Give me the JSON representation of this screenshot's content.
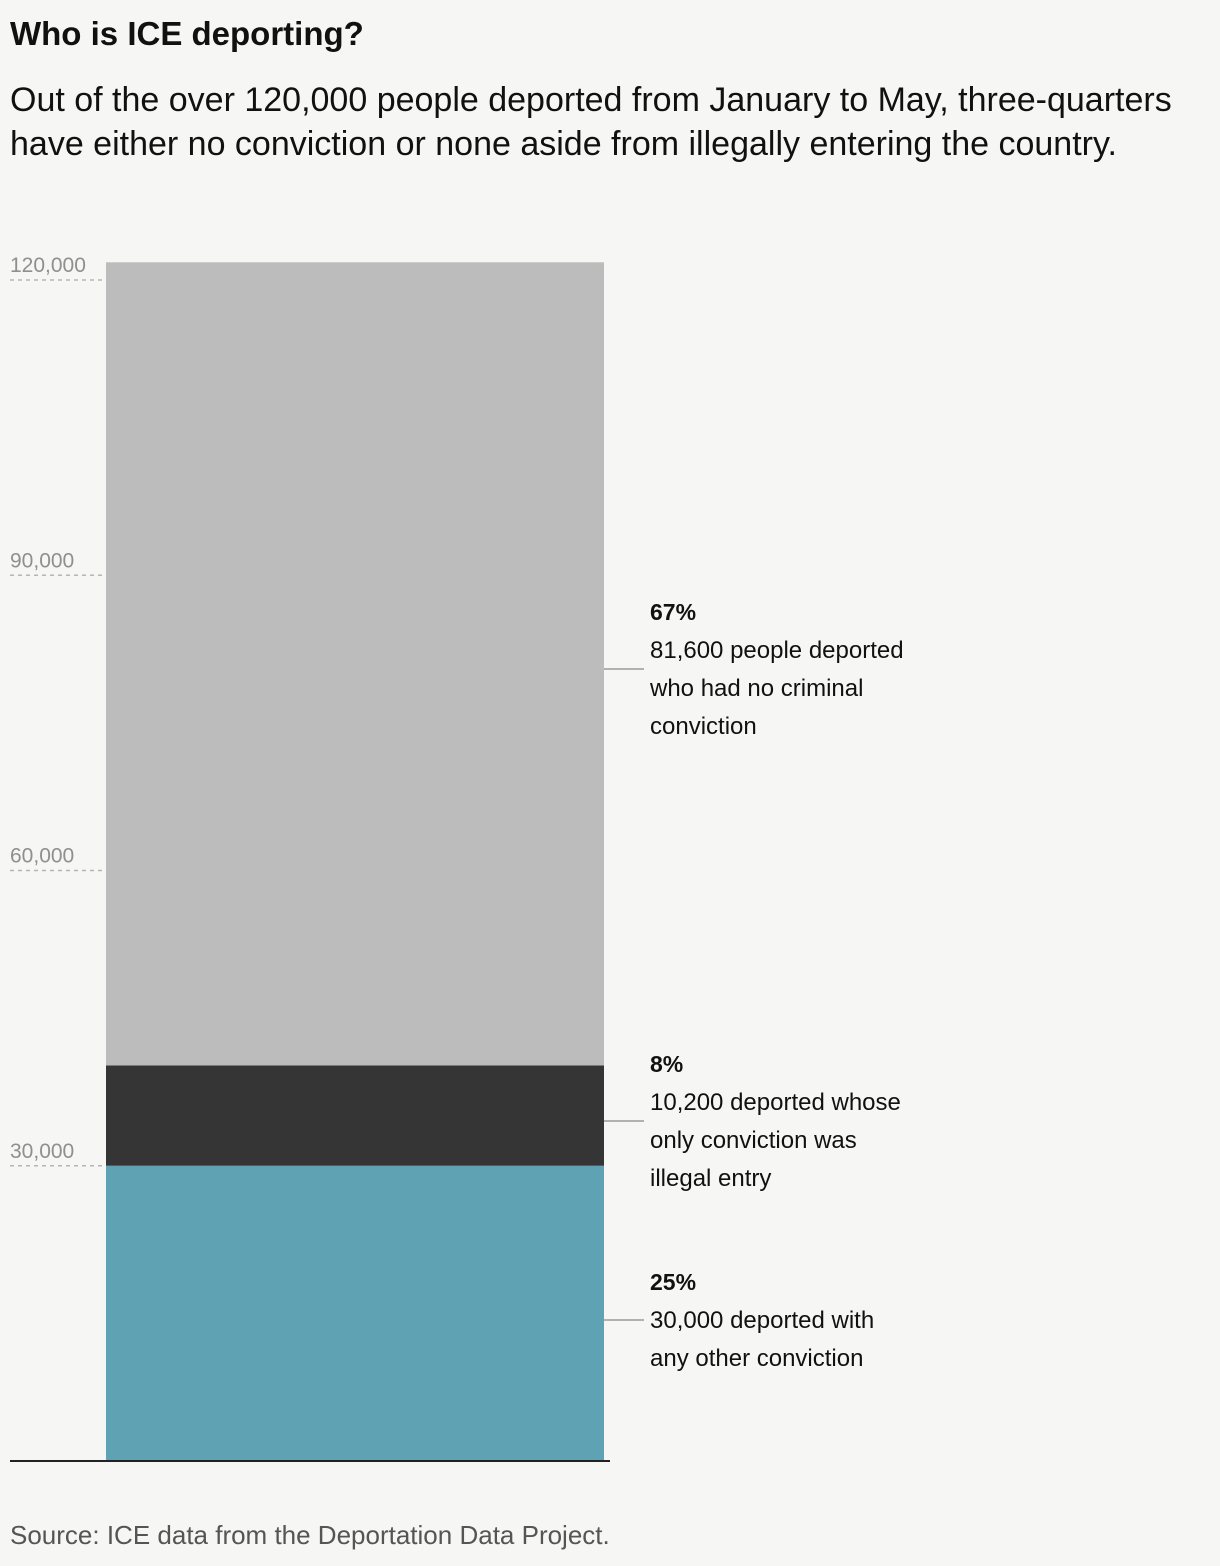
{
  "header": {
    "title": "Who is ICE deporting?",
    "subtitle": "Out of the over 120,000 people deported from January to May, three-quarters have either no conviction or none aside from illegally entering the country."
  },
  "footer": {
    "source": "Source: ICE data from the Deportation Data Project."
  },
  "chart_data": {
    "type": "bar",
    "stacked": true,
    "categories": [
      ""
    ],
    "ylim": [
      0,
      120000
    ],
    "y_ticks": [
      30000,
      60000,
      90000,
      120000
    ],
    "y_tick_labels": [
      "30,000",
      "60,000",
      "90,000",
      "120,000"
    ],
    "grid": "dashed tick lines at y-axis labels",
    "series": [
      {
        "values": [
          30000
        ],
        "color": "#5fa2b3",
        "annotation": {
          "percent": "25%",
          "lines": [
            "30,000 deported with",
            "any other conviction"
          ]
        }
      },
      {
        "values": [
          10200
        ],
        "color": "#353535",
        "annotation": {
          "percent": "8%",
          "lines": [
            "10,200 deported whose",
            "only conviction was",
            "illegal entry"
          ]
        }
      },
      {
        "values": [
          81600
        ],
        "color": "#bcbcbc",
        "annotation": {
          "percent": "67%",
          "lines": [
            "81,600 people deported",
            "who had no criminal",
            "conviction"
          ]
        }
      }
    ]
  }
}
